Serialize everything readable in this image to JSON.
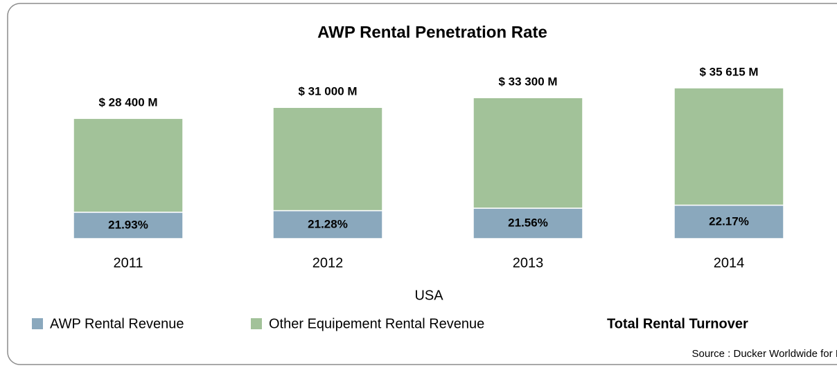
{
  "chart_data": {
    "type": "bar",
    "stacked": true,
    "title": "AWP Rental Penetration Rate",
    "categories": [
      "2011",
      "2012",
      "2013",
      "2014"
    ],
    "xlabel": "USA",
    "series": [
      {
        "name": "AWP Rental Revenue",
        "color": "#8aa8bd",
        "values": [
          21.93,
          21.28,
          21.56,
          22.17
        ],
        "value_labels": [
          "21.93%",
          "21.28%",
          "21.56%",
          "22.17%"
        ]
      },
      {
        "name": "Other Equipement Rental Revenue",
        "color": "#a2c299"
      }
    ],
    "totals": {
      "name": "Total Rental Turnover",
      "values": [
        28400,
        31000,
        33300,
        35615
      ],
      "value_labels": [
        "$ 28 400 M",
        "$ 31 000 M",
        "$ 33 300 M",
        "$ 35 615 M"
      ]
    },
    "source": "Source : Ducker Worldwide for IPAF"
  }
}
